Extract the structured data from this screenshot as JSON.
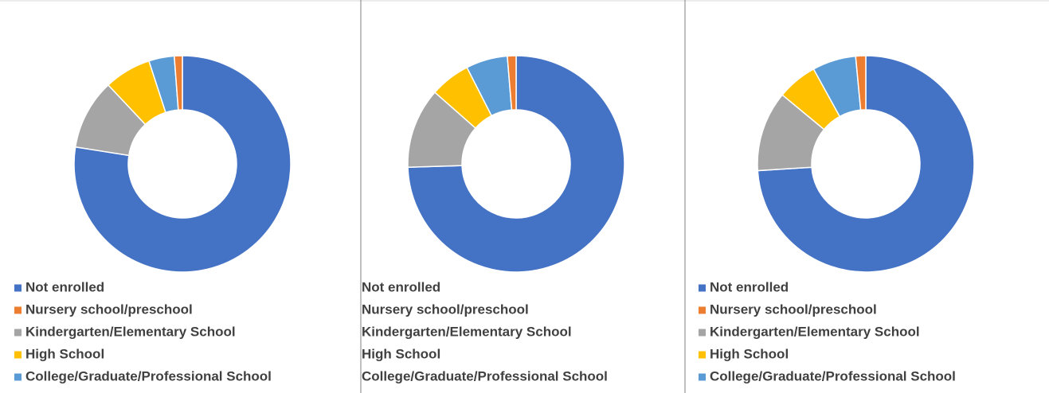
{
  "chart_data": [
    {
      "type": "donut",
      "categories": [
        "Not enrolled",
        "Nursery school/preschool",
        "Kindergarten/Elementary School",
        "High School",
        "College/Graduate/Professional School"
      ],
      "values": [
        77.5,
        1.2,
        10.5,
        7,
        3.8
      ],
      "colors": [
        "#4472c4",
        "#ed7d31",
        "#a5a5a5",
        "#ffc000",
        "#5b9bd5"
      ]
    },
    {
      "type": "donut",
      "categories": [
        "Not enrolled",
        "Nursery school/preschool",
        "Kindergarten/Elementary School",
        "High School",
        "College/Graduate/Professional School"
      ],
      "values": [
        74.5,
        1.3,
        12,
        6,
        6.2
      ],
      "colors": [
        "#4472c4",
        "#ed7d31",
        "#a5a5a5",
        "#ffc000",
        "#5b9bd5"
      ]
    },
    {
      "type": "donut",
      "categories": [
        "Not enrolled",
        "Nursery school/preschool",
        "Kindergarten/Elementary School",
        "High School",
        "College/Graduate/Professional School"
      ],
      "values": [
        74,
        1.5,
        12,
        6,
        6.5
      ],
      "colors": [
        "#4472c4",
        "#ed7d31",
        "#a5a5a5",
        "#ffc000",
        "#5b9bd5"
      ]
    }
  ]
}
